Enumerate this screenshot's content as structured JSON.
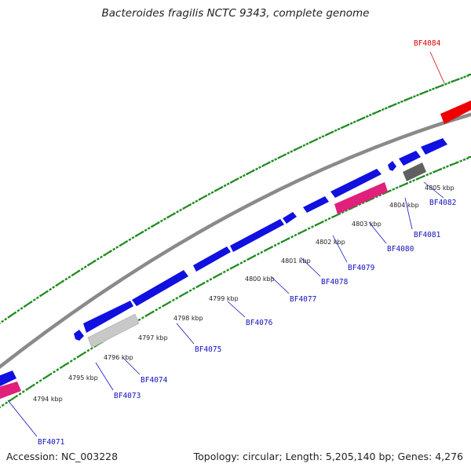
{
  "title": "Bacteroides fragilis NCTC 9343, complete genome",
  "footer": {
    "accession": "Accession: NC_003228",
    "summary": "Topology: circular; Length: 5,205,140 bp; Genes: 4,276"
  },
  "colors": {
    "backbone": "#8a8a8a",
    "tick": "#1f8a1f",
    "label_blue": "#1010c0",
    "label_red": "#dd0000",
    "gene_blue": "#1010e0",
    "gene_pink": "#e0207a",
    "gene_red": "#ee0000",
    "gene_gray": "#606060",
    "gene_lightgray": "#c8c8c8"
  },
  "kbp_labels": [
    "4794 kbp",
    "4795 kbp",
    "4796 kbp",
    "4797 kbp",
    "4798 kbp",
    "4799 kbp",
    "4800 kbp",
    "4801 kbp",
    "4802 kbp",
    "4803 kbp",
    "4804 kbp",
    "4805 kbp"
  ],
  "gene_labels": [
    {
      "text": "BF4071",
      "color": "blue"
    },
    {
      "text": "BF4073",
      "color": "blue"
    },
    {
      "text": "BF4074",
      "color": "blue"
    },
    {
      "text": "BF4075",
      "color": "blue"
    },
    {
      "text": "BF4076",
      "color": "blue"
    },
    {
      "text": "BF4077",
      "color": "blue"
    },
    {
      "text": "BF4078",
      "color": "blue"
    },
    {
      "text": "BF4079",
      "color": "blue"
    },
    {
      "text": "BF4080",
      "color": "blue"
    },
    {
      "text": "BF4081",
      "color": "blue"
    },
    {
      "text": "BF4082",
      "color": "blue"
    },
    {
      "text": "BF4084",
      "color": "red"
    }
  ]
}
